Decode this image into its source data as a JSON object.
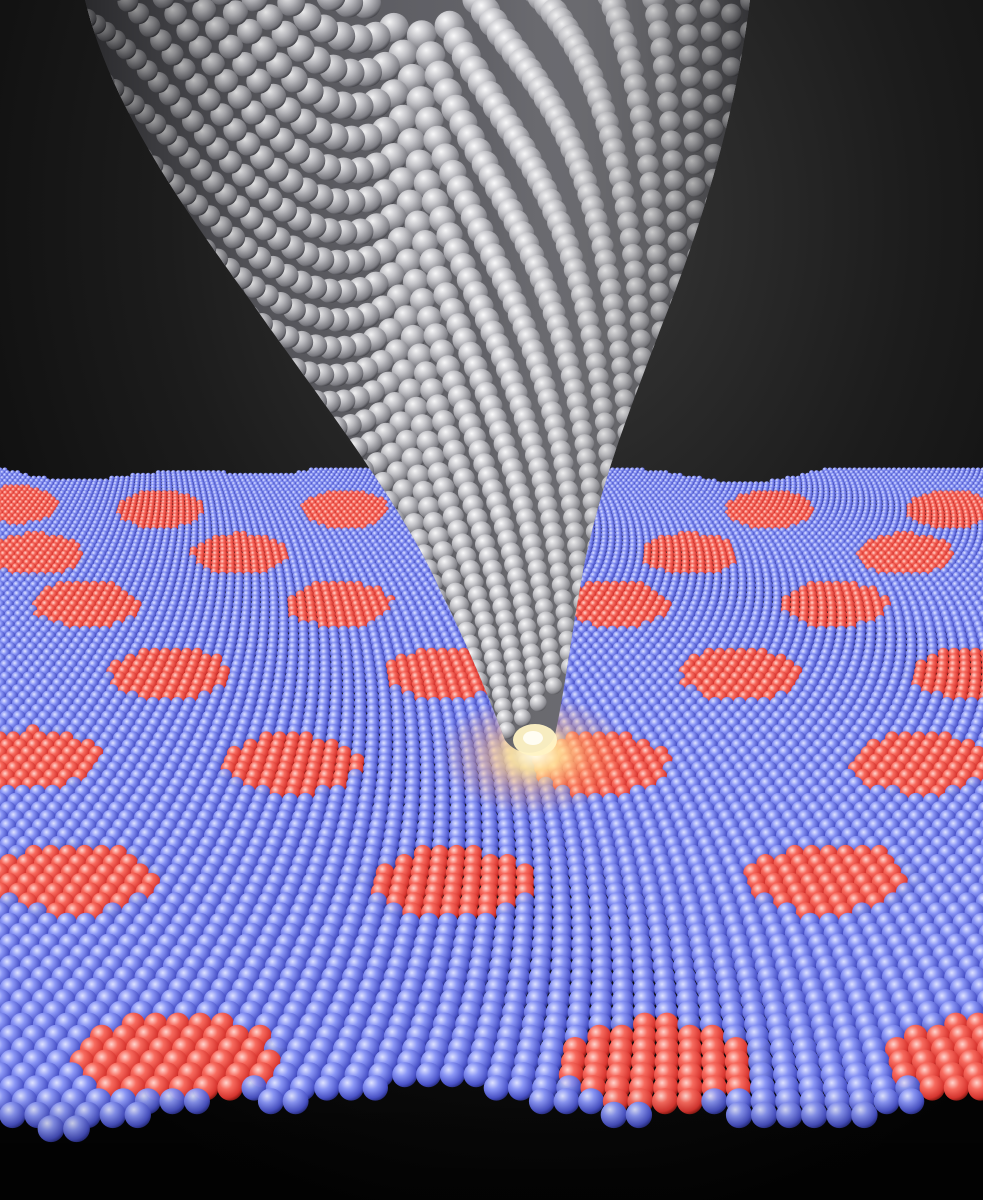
{
  "scene": {
    "subject": "stm-tip-over-moire-lattice",
    "colors": {
      "background_top": "#050505",
      "background_mid": "#2a2a2a",
      "tip_light": "#e6e6ea",
      "tip_mid": "#b9b9be",
      "tip_dark": "#55555a",
      "tip_shadow": "#2b2b30",
      "lattice_blue_light": "#9aa6ff",
      "lattice_blue": "#5a64e0",
      "lattice_blue_dark": "#2f36a8",
      "lattice_red_light": "#ff8a7e",
      "lattice_red": "#ef4a44",
      "lattice_red_dark": "#a8231f",
      "glow": "#ffe39a",
      "glow_core": "#fffbe8"
    },
    "moire_domains": 27,
    "tip_rows": 30
  }
}
